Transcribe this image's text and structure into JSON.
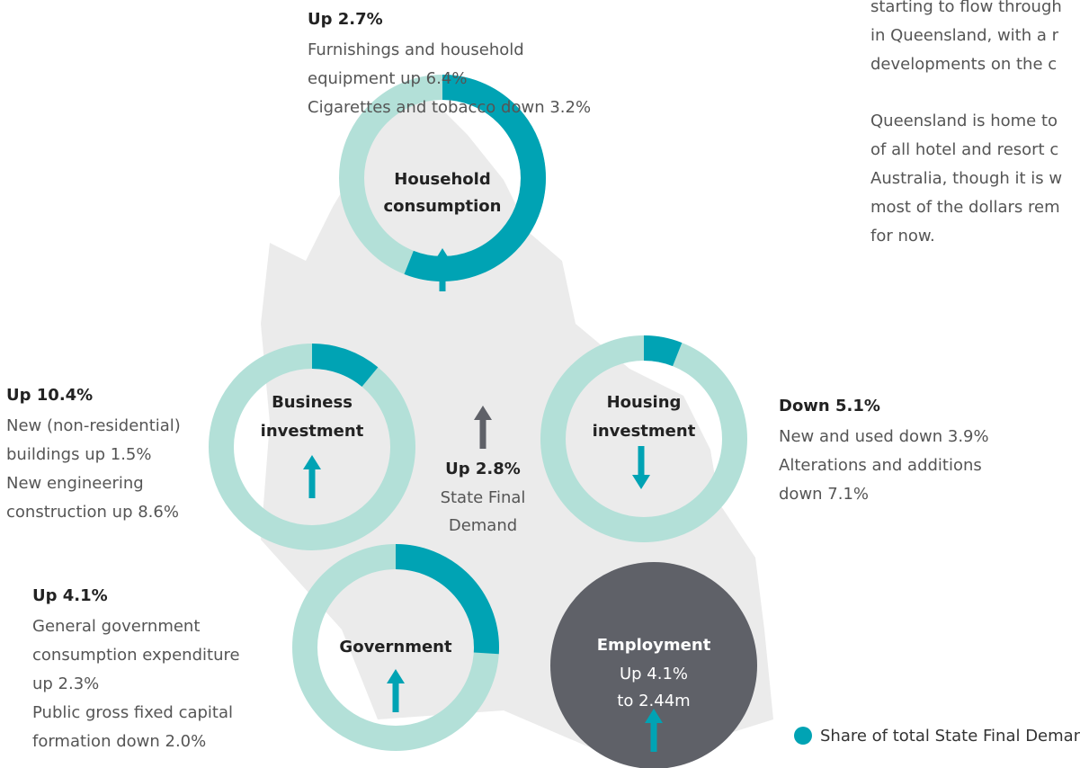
{
  "intro": {
    "lines": [
      "starting to flow through",
      "in Queensland, with a r",
      "developments on the c",
      "Queensland is home to",
      "of all hotel and resort c",
      "Australia, though it is w",
      "most of the dollars rem",
      "for now."
    ]
  },
  "center": {
    "headline": "Up 2.8%",
    "label": [
      "State Final",
      "Demand"
    ]
  },
  "segments": [
    {
      "name": [
        "Household",
        "consumption"
      ],
      "share": 56,
      "direction": "up",
      "headline": "Up 2.7%",
      "details": [
        "Furnishings and household",
        "equipment up 6.4%",
        "Cigarettes and tobacco down 3.2%"
      ]
    },
    {
      "name": [
        "Business",
        "investment"
      ],
      "share": 11,
      "direction": "up",
      "headline": "Up 10.4%",
      "details": [
        "New (non-residential)",
        "buildings up 1.5%",
        "New engineering",
        "construction up 8.6%"
      ]
    },
    {
      "name": [
        "Housing",
        "investment"
      ],
      "share": 6,
      "direction": "down",
      "headline": "Down 5.1%",
      "details": [
        "New and used down 3.9%",
        "Alterations and additions",
        "down 7.1%"
      ]
    },
    {
      "name": [
        "Government"
      ],
      "share": 26,
      "direction": "up",
      "headline": "Up 4.1%",
      "details": [
        "General government",
        "consumption expenditure",
        "up 2.3%",
        "Public gross fixed capital",
        "formation down 2.0%"
      ]
    }
  ],
  "employment": {
    "name": "Employment",
    "lines": [
      "Up 4.1%",
      "to 2.44m"
    ],
    "direction": "up"
  },
  "legend": "Share of total State Final Demand"
}
